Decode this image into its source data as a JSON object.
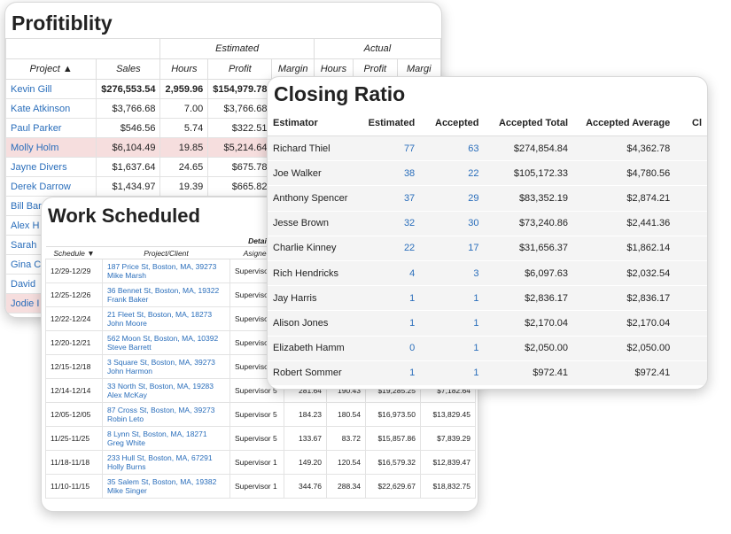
{
  "profitability": {
    "title": "Profitiblity",
    "group_headers": [
      "Estimated",
      "Actual"
    ],
    "columns": [
      "Project ▲",
      "Sales",
      "Hours",
      "Profit",
      "Margin",
      "Hours",
      "Profit",
      "Margi"
    ],
    "rows": [
      [
        "Kevin Gill",
        "$276,553.54",
        "2,959.96",
        "$154,979.78"
      ],
      [
        "Kate Atkinson",
        "$3,766.68",
        "7.00",
        "$3,766.68"
      ],
      [
        "Paul Parker",
        "$546.56",
        "5.74",
        "$322.51"
      ],
      [
        "Molly Holm",
        "$6,104.49",
        "19.85",
        "$5,214.64"
      ],
      [
        "Jayne Divers",
        "$1,637.64",
        "24.65",
        "$675.78"
      ],
      [
        "Derek Darrow",
        "$1,434.97",
        "19.39",
        "$665.82"
      ],
      [
        "Bill Barr"
      ],
      [
        "Alex H"
      ],
      [
        "Sarah"
      ],
      [
        "Gina C"
      ],
      [
        "David"
      ],
      [
        "Jodie I"
      ]
    ]
  },
  "closing_ratio": {
    "title": "Closing Ratio",
    "columns": [
      "Estimator",
      "Estimated",
      "Accepted",
      "Accepted Total",
      "Accepted Average",
      "Cl"
    ],
    "rows": [
      [
        "Richard Thiel",
        "77",
        "63",
        "$274,854.84",
        "$4,362.78"
      ],
      [
        "Joe Walker",
        "38",
        "22",
        "$105,172.33",
        "$4,780.56"
      ],
      [
        "Anthony Spencer",
        "37",
        "29",
        "$83,352.19",
        "$2,874.21"
      ],
      [
        "Jesse Brown",
        "32",
        "30",
        "$73,240.86",
        "$2,441.36"
      ],
      [
        "Charlie Kinney",
        "22",
        "17",
        "$31,656.37",
        "$1,862.14"
      ],
      [
        "Rich Hendricks",
        "4",
        "3",
        "$6,097.63",
        "$2,032.54"
      ],
      [
        "Jay Harris",
        "1",
        "1",
        "$2,836.17",
        "$2,836.17"
      ],
      [
        "Alison Jones",
        "1",
        "1",
        "$2,170.04",
        "$2,170.04"
      ],
      [
        "Elizabeth Hamm",
        "0",
        "1",
        "$2,050.00",
        "$2,050.00"
      ],
      [
        "Robert Sommer",
        "1",
        "1",
        "$972.41",
        "$972.41"
      ]
    ]
  },
  "work_scheduled": {
    "title": "Work Scheduled",
    "group_header": "Details",
    "columns": [
      "Schedule ▼",
      "Project/Client",
      "Asignee"
    ],
    "rows": [
      {
        "schedule": "12/29-12/29",
        "address": "187 Price St, Boston, MA, 39273",
        "client": "Mike Marsh",
        "assignee": "Supervisor",
        "values": []
      },
      {
        "schedule": "12/25-12/26",
        "address": "36 Bennet St, Boston, MA, 19322",
        "client": "Frank Baker",
        "assignee": "Supervisor",
        "values": []
      },
      {
        "schedule": "12/22-12/24",
        "address": "21 Fleet St, Boston, MA, 18273",
        "client": "John Moore",
        "assignee": "Supervisor",
        "values": []
      },
      {
        "schedule": "12/20-12/21",
        "address": "562 Moon St, Boston, MA, 10392",
        "client": "Steve Barrett",
        "assignee": "Supervisor",
        "values": []
      },
      {
        "schedule": "12/15-12/18",
        "address": "3 Square St, Boston, MA, 39273",
        "client": "John Harmon",
        "assignee": "Supervisor",
        "values": []
      },
      {
        "schedule": "12/14-12/14",
        "address": "33 North St, Boston, MA, 19283",
        "client": "Alex McKay",
        "assignee": "Supervisor 5",
        "values": [
          "281.64",
          "190.43",
          "$19,285.25",
          "$7,182.64"
        ]
      },
      {
        "schedule": "12/05-12/05",
        "address": "87 Cross St, Boston, MA, 39273",
        "client": "Robin Leto",
        "assignee": "Supervisor 5",
        "values": [
          "184.23",
          "180.54",
          "$16,973.50",
          "$13,829.45"
        ]
      },
      {
        "schedule": "11/25-11/25",
        "address": "8 Lynn St, Boston, MA, 18271",
        "client": "Greg White",
        "assignee": "Supervisor 5",
        "values": [
          "133.67",
          "83.72",
          "$15,857.86",
          "$7,839.29"
        ]
      },
      {
        "schedule": "11/18-11/18",
        "address": "233 Hull St, Boston, MA, 67291",
        "client": "Holly Burns",
        "assignee": "Supervisor 1",
        "values": [
          "149.20",
          "120.54",
          "$16,579.32",
          "$12,839.47"
        ]
      },
      {
        "schedule": "11/10-11/15",
        "address": "35 Salem St, Boston, MA, 19382",
        "client": "Mike Singer",
        "assignee": "Supervisor 1",
        "values": [
          "344.76",
          "288.34",
          "$22,629.67",
          "$18,832.75"
        ]
      }
    ]
  }
}
